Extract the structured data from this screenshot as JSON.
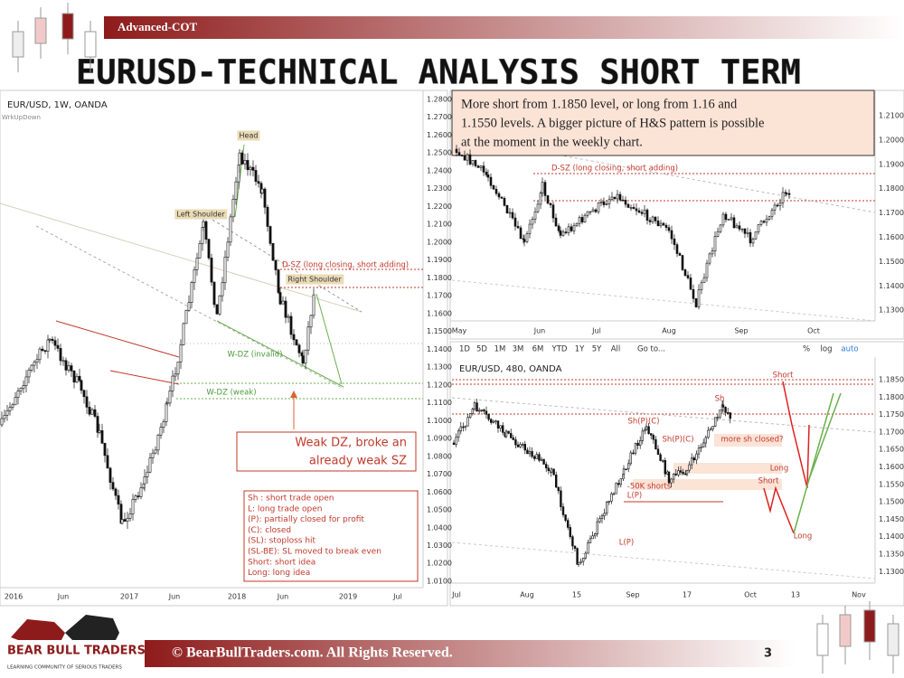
{
  "header": {
    "banner": "Advanced-COT",
    "title": "EURUSD-TECHNICAL ANALYSIS SHORT TERM"
  },
  "note": [
    "More short from 1.1850 level,  or long from 1.16 and",
    "1.1550 levels. A bigger picture of H&S pattern is possible",
    "at the moment in the weekly chart."
  ],
  "weekly": {
    "symbol": "EUR/USD, 1W, OANDA",
    "indicator": "WrkUpDown",
    "price_labels": [
      "1.2800",
      "1.2700",
      "1.2600",
      "1.2500",
      "1.2400",
      "1.2300",
      "1.2200",
      "1.2100",
      "1.2000",
      "1.1900",
      "1.1800",
      "1.1700",
      "1.1600",
      "1.1500",
      "1.1400",
      "1.1300",
      "1.1200",
      "1.1100",
      "1.1000",
      "1.0900",
      "1.0800",
      "1.0700",
      "1.0600",
      "1.0500",
      "1.0400",
      "1.0300",
      "1.0200",
      "1.0100"
    ],
    "time_labels": [
      "2016",
      "Jun",
      "2017",
      "Jun",
      "2018",
      "Jun",
      "2019",
      "Jul"
    ],
    "annotations": [
      "Head",
      "Left Shoulder",
      "D-SZ (long closing, short adding)",
      "Right Shoulder",
      "W-DZ (invalid)",
      "W-DZ (weak)"
    ],
    "callout": [
      "Weak DZ, broke an",
      "already weak SZ"
    ],
    "legend": [
      "Sh : short trade open",
      "L: long trade open",
      "(P): partially closed for profit",
      "(C): closed",
      "(SL): stoploss hit",
      "(SL-BE): SL moved to break even",
      "Short: short idea",
      "Long: long idea"
    ]
  },
  "daily": {
    "price_labels": [
      "1.2100",
      "1.2000",
      "1.1900",
      "1.1800",
      "1.1700",
      "1.1600",
      "1.1500",
      "1.1400",
      "1.1300"
    ],
    "time_labels": [
      "May",
      "Jun",
      "Jul",
      "Aug",
      "Sep",
      "Oct"
    ],
    "annotation": "D-SZ (long closing, short adding)"
  },
  "toolbar": {
    "ranges": [
      "1D",
      "5D",
      "1M",
      "3M",
      "6M",
      "YTD",
      "1Y",
      "5Y",
      "All"
    ],
    "goto": "Go to...",
    "options": [
      "%",
      "log",
      "auto"
    ]
  },
  "h4": {
    "symbol": "EUR/USD, 480, OANDA",
    "price_labels": [
      "1.1850",
      "1.1800",
      "1.1750",
      "1.1700",
      "1.1650",
      "1.1600",
      "1.1550",
      "1.1500",
      "1.1450",
      "1.1400",
      "1.1350",
      "1.1300"
    ],
    "time_labels": [
      "Jul",
      "Aug",
      "15",
      "Sep",
      "17",
      "Oct",
      "13",
      "Nov"
    ],
    "annotations": [
      "Short",
      "Sh",
      "Sh(P)(C)",
      "Sh(P)(C)",
      "more sh closed?",
      "Long",
      "Short",
      "-50K shorts",
      "L(P)",
      "L(P)",
      "Long"
    ]
  },
  "footer": {
    "brand": "BEAR BULL TRADERS",
    "tagline": "LEARNING COMMUNITY OF SERIOUS TRADERS",
    "copyright": "© BearBullTraders.com. All Rights Reserved.",
    "page": "3"
  }
}
